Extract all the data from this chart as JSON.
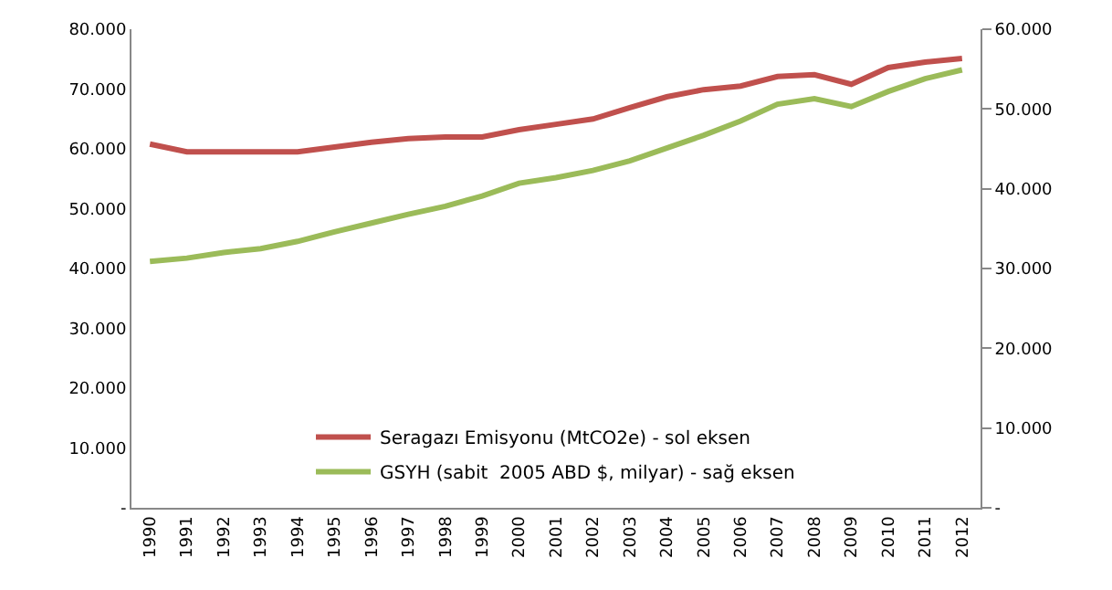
{
  "chart_data": {
    "type": "line",
    "categories": [
      "1990",
      "1991",
      "1992",
      "1993",
      "1994",
      "1995",
      "1996",
      "1997",
      "1998",
      "1999",
      "2000",
      "2001",
      "2002",
      "2003",
      "2004",
      "2005",
      "2006",
      "2007",
      "2008",
      "2009",
      "2010",
      "2011",
      "2012"
    ],
    "series": [
      {
        "name": "Seragazı Emisyonu (MtCO2e) - sol eksen",
        "color": "#c0504d",
        "values": [
          60800,
          59500,
          59500,
          59500,
          59500,
          60300,
          61100,
          61700,
          62000,
          62000,
          63200,
          64100,
          65000,
          66900,
          68700,
          69900,
          70500,
          72100,
          72400,
          70800,
          73600,
          74500,
          75100
        ]
      },
      {
        "name": "GSYH (sabit  2005 ABD $, milyar) - sağ eksen",
        "color": "#9bbb59",
        "axis": "y2",
        "values": [
          30900,
          31300,
          32000,
          32500,
          33400,
          34600,
          35700,
          36800,
          37800,
          39100,
          40700,
          41400,
          42300,
          43500,
          45100,
          46700,
          48500,
          50600,
          51300,
          50300,
          52200,
          53800,
          54900
        ]
      }
    ],
    "ylim": [
      0,
      80000
    ],
    "yticks": [
      {
        "value": 0,
        "label": "-"
      },
      {
        "value": 10000,
        "label": "10.000"
      },
      {
        "value": 20000,
        "label": "20.000"
      },
      {
        "value": 30000,
        "label": "30.000"
      },
      {
        "value": 40000,
        "label": "40.000"
      },
      {
        "value": 50000,
        "label": "50.000"
      },
      {
        "value": 60000,
        "label": "60.000"
      },
      {
        "value": 70000,
        "label": "70.000"
      },
      {
        "value": 80000,
        "label": "80.000"
      }
    ],
    "y2lim": [
      0,
      60000
    ],
    "y2ticks": [
      {
        "value": 0,
        "label": "-"
      },
      {
        "value": 10000,
        "label": "10.000"
      },
      {
        "value": 20000,
        "label": "20.000"
      },
      {
        "value": 30000,
        "label": "30.000"
      },
      {
        "value": 40000,
        "label": "40.000"
      },
      {
        "value": 50000,
        "label": "50.000"
      },
      {
        "value": 60000,
        "label": "60.000"
      }
    ],
    "legend": "bottom",
    "marker": "none",
    "line_style": "solid"
  }
}
